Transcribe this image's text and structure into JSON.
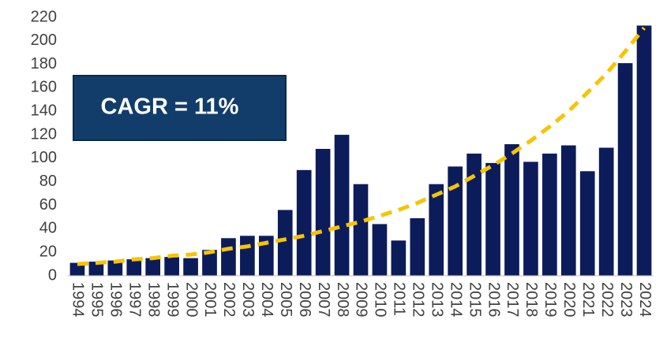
{
  "chart_data": {
    "type": "bar",
    "categories": [
      "1994",
      "1995",
      "1996",
      "1997",
      "1998",
      "1999",
      "2000",
      "2001",
      "2002",
      "2003",
      "2004",
      "2005",
      "2006",
      "2007",
      "2008",
      "2009",
      "2010",
      "2011",
      "2012",
      "2013",
      "2014",
      "2015",
      "2016",
      "2017",
      "2018",
      "2019",
      "2020",
      "2021",
      "2022",
      "2023",
      "2024"
    ],
    "values": [
      11,
      12,
      13,
      14,
      15,
      16,
      15,
      22,
      32,
      34,
      34,
      56,
      90,
      108,
      120,
      78,
      44,
      30,
      49,
      78,
      93,
      104,
      96,
      112,
      97,
      104,
      111,
      89,
      109,
      181,
      213
    ],
    "color": "#0c1c5a",
    "trend": {
      "color": "#f7c400",
      "values": [
        10,
        11,
        12,
        14,
        15,
        17,
        18,
        20,
        23,
        25,
        28,
        31,
        34,
        38,
        42,
        46,
        51,
        56,
        62,
        69,
        76,
        85,
        94,
        104,
        115,
        127,
        140,
        156,
        172,
        191,
        211
      ]
    },
    "annotation": "CAGR = 11%",
    "ylim": [
      0,
      220
    ],
    "yticks": [
      0,
      20,
      40,
      60,
      80,
      100,
      120,
      140,
      160,
      180,
      200,
      220
    ],
    "grid": false
  }
}
